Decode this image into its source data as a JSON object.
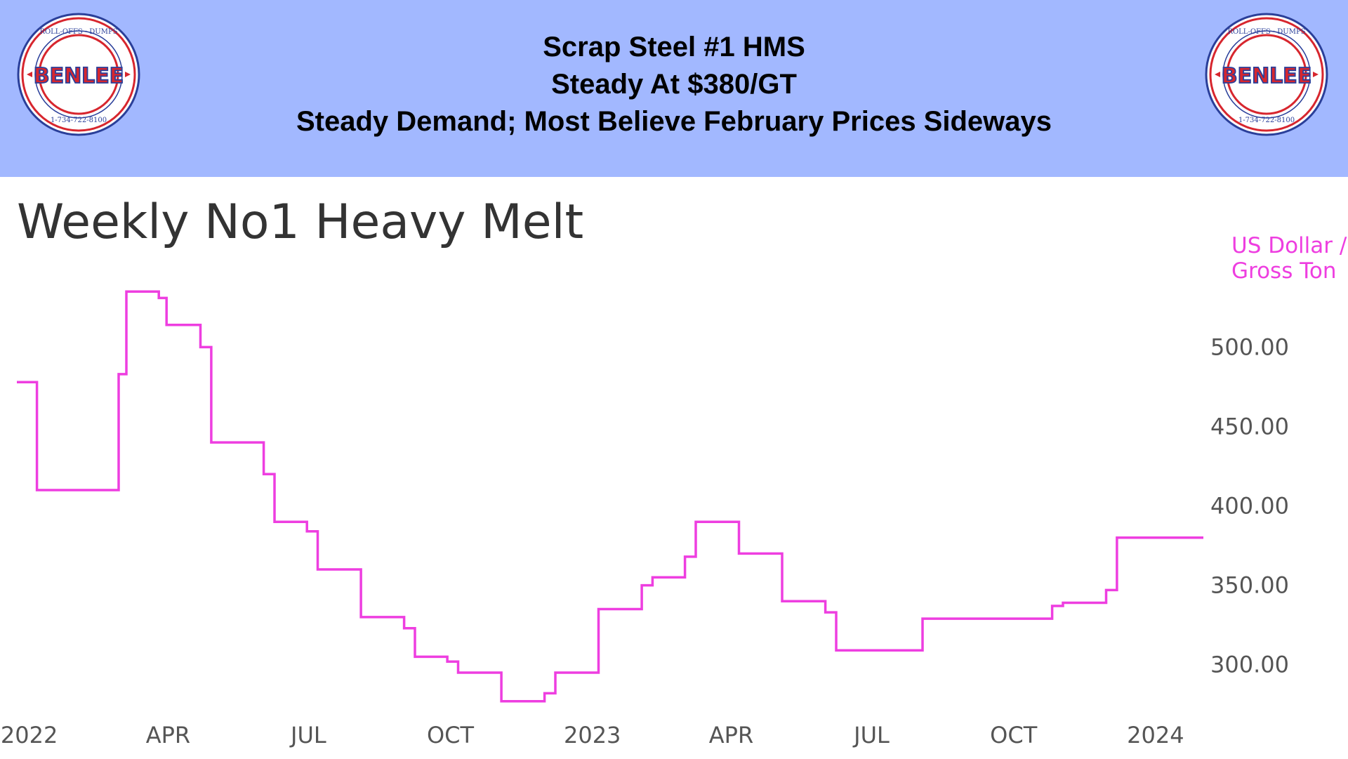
{
  "header": {
    "line1": "Scrap Steel #1 HMS",
    "line2": "Steady At $380/GT",
    "line3": "Steady Demand; Most Believe February Prices Sideways",
    "background_color": "#a2b8ff"
  },
  "logo": {
    "text": "BENLEE",
    "ring_text": "TARPS ★ ROLL-OFFS ★ DUMPS ★ LUGGERS ★ BENLEE.COM ★ 1-734-722-8100 ★ PARTS ★"
  },
  "chart_data": {
    "type": "line",
    "step": true,
    "title": "Weekly No1 Heavy Melt",
    "ylabel": "US Dollar / Gross Ton",
    "xlabel": "",
    "ylim": [
      272,
      540
    ],
    "y_ticks": [
      "500.00",
      "450.00",
      "400.00",
      "350.00",
      "300.00"
    ],
    "y_tick_values": [
      500,
      450,
      400,
      350,
      300
    ],
    "x_ticks": [
      "2022",
      "APR",
      "JUL",
      "OCT",
      "2023",
      "APR",
      "JUL",
      "OCT",
      "2024"
    ],
    "x_tick_dates": [
      "2022-01-01",
      "2022-04-01",
      "2022-07-01",
      "2022-10-01",
      "2023-01-01",
      "2023-04-01",
      "2023-07-01",
      "2023-10-01",
      "2024-01-01"
    ],
    "line_color": "#ee3ee0",
    "grid": false,
    "series": [
      {
        "points": [
          [
            "2021-12-24",
            478
          ],
          [
            "2022-01-06",
            410
          ],
          [
            "2022-02-28",
            483
          ],
          [
            "2022-03-05",
            535
          ],
          [
            "2022-03-26",
            531
          ],
          [
            "2022-03-31",
            514
          ],
          [
            "2022-04-22",
            500
          ],
          [
            "2022-04-29",
            440
          ],
          [
            "2022-06-02",
            420
          ],
          [
            "2022-06-09",
            390
          ],
          [
            "2022-06-30",
            384
          ],
          [
            "2022-07-07",
            360
          ],
          [
            "2022-08-04",
            330
          ],
          [
            "2022-09-01",
            323
          ],
          [
            "2022-09-08",
            305
          ],
          [
            "2022-09-29",
            302
          ],
          [
            "2022-10-06",
            295
          ],
          [
            "2022-11-03",
            277
          ],
          [
            "2022-12-01",
            282
          ],
          [
            "2022-12-08",
            295
          ],
          [
            "2023-01-05",
            335
          ],
          [
            "2023-02-02",
            350
          ],
          [
            "2023-02-09",
            355
          ],
          [
            "2023-03-02",
            368
          ],
          [
            "2023-03-09",
            390
          ],
          [
            "2023-04-06",
            370
          ],
          [
            "2023-05-04",
            340
          ],
          [
            "2023-06-01",
            333
          ],
          [
            "2023-06-08",
            309
          ],
          [
            "2023-08-03",
            329
          ],
          [
            "2023-10-26",
            337
          ],
          [
            "2023-11-02",
            339
          ],
          [
            "2023-11-30",
            347
          ],
          [
            "2023-12-07",
            380
          ],
          [
            "2024-02-01",
            380
          ]
        ]
      }
    ]
  }
}
